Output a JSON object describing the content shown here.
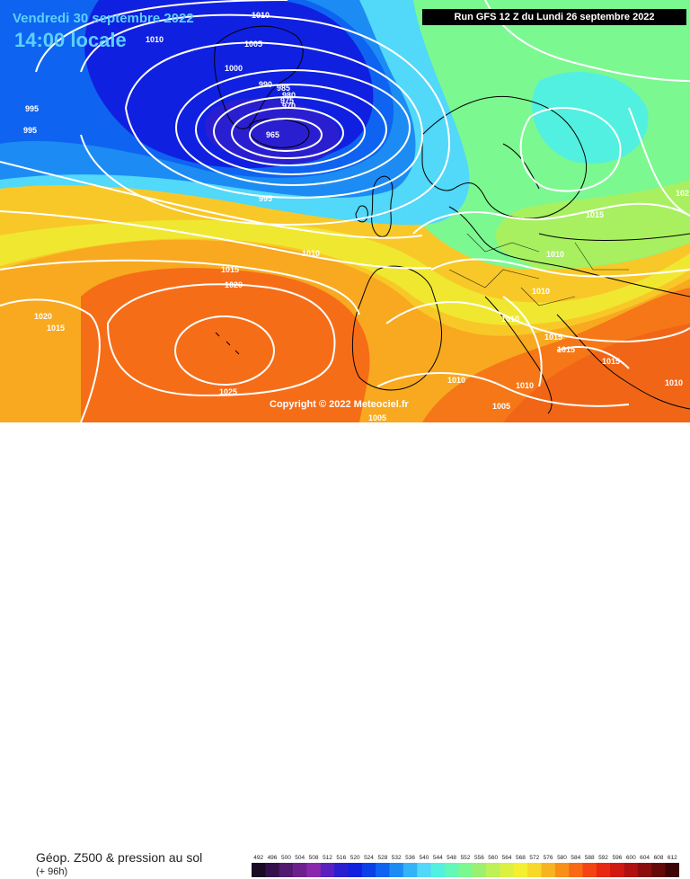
{
  "header": {
    "date": "Vendredi 30 septembre 2022",
    "time": "14:00 locale",
    "run": "Run GFS 12 Z du Lundi 26 septembre 2022"
  },
  "copyright": "Copyright © 2022 Meteociel.fr",
  "footer": {
    "product": "Géop. Z500 & pression au sol",
    "lead": "(+ 96h)"
  },
  "isobar_labels": [
    "1010",
    "1010",
    "1005",
    "1000",
    "995",
    "995",
    "990",
    "985",
    "980",
    "975",
    "970",
    "965",
    "995",
    "1010",
    "1015",
    "1020",
    "1020",
    "1015",
    "1025",
    "1015",
    "1010",
    "1010",
    "1010",
    "1015",
    "1015",
    "1015",
    "1010",
    "1010",
    "1005",
    "1005",
    "1010",
    "102"
  ],
  "legend": {
    "values": [
      "492",
      "496",
      "500",
      "504",
      "508",
      "512",
      "516",
      "520",
      "524",
      "528",
      "532",
      "536",
      "540",
      "544",
      "548",
      "552",
      "556",
      "560",
      "564",
      "568",
      "572",
      "576",
      "580",
      "584",
      "588",
      "592",
      "596",
      "600",
      "604",
      "608",
      "612"
    ],
    "colors": [
      "#1a0a24",
      "#34104a",
      "#521a6e",
      "#6e1f8e",
      "#8a28ad",
      "#5a1fbf",
      "#2a1fd0",
      "#1020e0",
      "#0a40e8",
      "#0e64f0",
      "#1c8cf4",
      "#34b4f8",
      "#52d8f8",
      "#52f0e0",
      "#62f8b8",
      "#7cf890",
      "#9cf070",
      "#bef058",
      "#dcf040",
      "#f4f030",
      "#f8d828",
      "#f8b420",
      "#f89018",
      "#f86a14",
      "#f44412",
      "#e82810",
      "#d01810",
      "#b01010",
      "#8a0c0c",
      "#640808",
      "#3c0404"
    ]
  }
}
